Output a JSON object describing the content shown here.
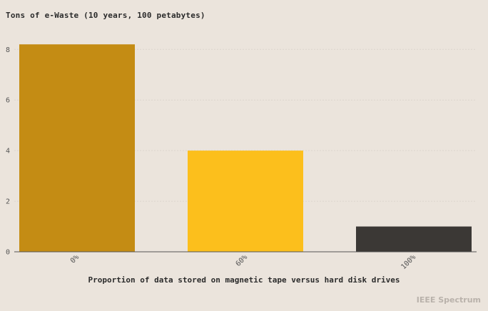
{
  "chart_data": {
    "type": "bar",
    "title": "Tons of e-Waste (10 years, 100 petabytes)",
    "xlabel": "Proportion of data stored on magnetic tape versus hard disk drives",
    "ylabel": "",
    "categories": [
      "0%",
      "60%",
      "100%"
    ],
    "values": [
      8.2,
      4.0,
      1.0
    ],
    "bar_colors": [
      "#c48c14",
      "#fcbf1c",
      "#3b3835"
    ],
    "ylim": [
      0,
      8.6
    ],
    "yticks": [
      "0",
      "2",
      "4",
      "6",
      "8"
    ],
    "grid": true,
    "legend": "none"
  },
  "branding": {
    "logo_text": "IEEE Spectrum"
  }
}
